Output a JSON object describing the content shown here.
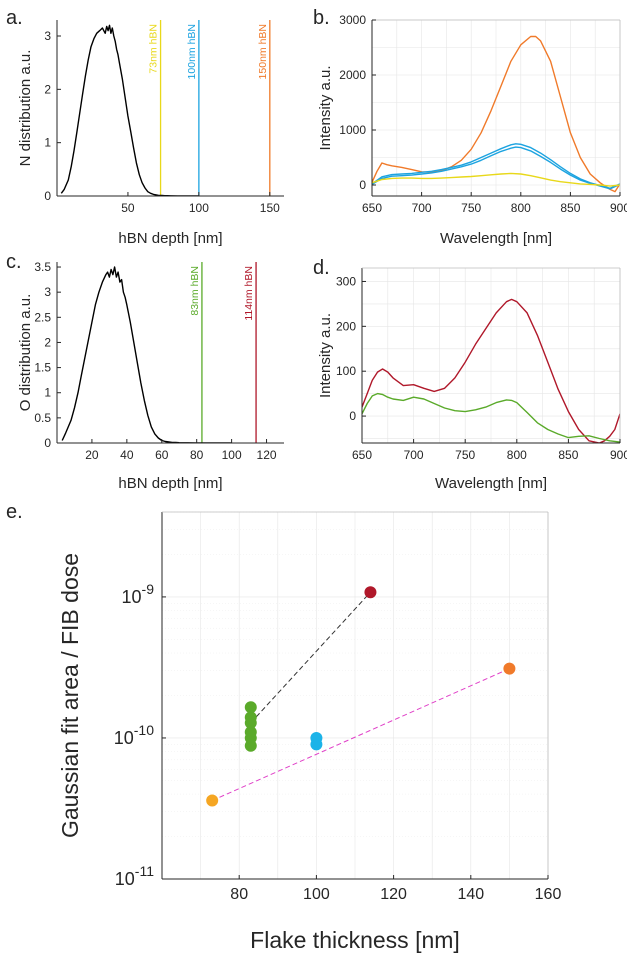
{
  "chart_data": [
    {
      "panel": "a",
      "panel_label": "a.",
      "type": "line",
      "title": "",
      "xlabel": "hBN depth [nm]",
      "ylabel": "N distribution a.u.",
      "xlim": [
        0,
        160
      ],
      "ylim": [
        0,
        3.3
      ],
      "xticks": [
        50,
        100,
        150
      ],
      "yticks": [
        0,
        1,
        2,
        3
      ],
      "grid": false,
      "series": [
        {
          "name": "N distribution",
          "color": "#000000",
          "x": [
            3,
            5,
            8,
            10,
            12,
            14,
            16,
            18,
            20,
            22,
            24,
            26,
            28,
            30,
            32,
            34,
            35,
            36,
            37,
            38,
            39,
            40,
            41,
            42,
            43,
            44,
            46,
            48,
            50,
            52,
            54,
            56,
            58,
            60,
            62,
            64,
            66,
            68,
            70,
            72,
            74,
            76,
            78,
            80,
            85,
            90,
            95,
            100
          ],
          "y": [
            0.05,
            0.12,
            0.3,
            0.55,
            0.85,
            1.2,
            1.55,
            1.9,
            2.25,
            2.55,
            2.8,
            2.95,
            3.05,
            3.1,
            3.15,
            3.05,
            3.18,
            3.1,
            3.2,
            3.05,
            3.15,
            3.0,
            2.9,
            2.75,
            2.65,
            2.5,
            2.2,
            1.85,
            1.5,
            1.2,
            0.9,
            0.62,
            0.4,
            0.25,
            0.15,
            0.08,
            0.05,
            0.03,
            0.02,
            0.01,
            0.01,
            0.005,
            0.005,
            0.003,
            0.002,
            0.001,
            0.001,
            0.001
          ]
        }
      ],
      "vlines": [
        {
          "x": 73,
          "label": "73nm hBN",
          "color": "#e8d81a"
        },
        {
          "x": 100,
          "label": "100nm hBN",
          "color": "#1ca3e0"
        },
        {
          "x": 150,
          "label": "150nm hBN",
          "color": "#f07a2a"
        }
      ]
    },
    {
      "panel": "b",
      "panel_label": "b.",
      "type": "line",
      "title": "",
      "xlabel": "Wavelength [nm]",
      "ylabel": "Intensity a.u.",
      "xlim": [
        650,
        900
      ],
      "ylim": [
        -200,
        3000
      ],
      "xticks": [
        650,
        700,
        750,
        800,
        850,
        900
      ],
      "yticks": [
        0,
        1000,
        2000,
        3000
      ],
      "grid": true,
      "series": [
        {
          "name": "150nm",
          "color": "#f07a2a",
          "x": [
            650,
            655,
            660,
            665,
            670,
            680,
            690,
            700,
            710,
            720,
            730,
            740,
            750,
            760,
            770,
            780,
            790,
            800,
            810,
            815,
            820,
            830,
            840,
            850,
            860,
            870,
            880,
            885,
            890,
            895,
            900
          ],
          "y": [
            50,
            250,
            400,
            370,
            350,
            320,
            280,
            240,
            230,
            260,
            330,
            450,
            650,
            950,
            1350,
            1800,
            2250,
            2550,
            2700,
            2700,
            2620,
            2250,
            1600,
            950,
            500,
            200,
            40,
            -20,
            -80,
            -120,
            20
          ]
        },
        {
          "name": "100nm (1)",
          "color": "#1ca3e0",
          "x": [
            650,
            660,
            670,
            680,
            690,
            700,
            710,
            720,
            730,
            740,
            750,
            760,
            770,
            780,
            790,
            795,
            800,
            810,
            820,
            830,
            840,
            850,
            860,
            870,
            880,
            890,
            900
          ],
          "y": [
            20,
            150,
            190,
            200,
            210,
            230,
            250,
            280,
            320,
            360,
            420,
            500,
            580,
            660,
            730,
            750,
            740,
            680,
            580,
            460,
            330,
            210,
            110,
            40,
            -10,
            -60,
            20
          ]
        },
        {
          "name": "100nm (2)",
          "color": "#1ca3e0",
          "x": [
            650,
            660,
            670,
            680,
            690,
            700,
            710,
            720,
            730,
            740,
            750,
            760,
            770,
            780,
            790,
            795,
            800,
            810,
            820,
            830,
            840,
            850,
            860,
            870,
            880,
            890,
            900
          ],
          "y": [
            10,
            120,
            160,
            170,
            180,
            200,
            220,
            250,
            290,
            330,
            380,
            450,
            530,
            610,
            670,
            690,
            680,
            620,
            520,
            410,
            290,
            180,
            90,
            30,
            -20,
            -70,
            10
          ]
        },
        {
          "name": "73nm",
          "color": "#e8d81a",
          "x": [
            650,
            660,
            670,
            680,
            690,
            700,
            710,
            720,
            730,
            740,
            750,
            760,
            770,
            780,
            790,
            800,
            810,
            820,
            830,
            840,
            850,
            860,
            870,
            880,
            890,
            900
          ],
          "y": [
            40,
            100,
            120,
            125,
            125,
            120,
            120,
            125,
            135,
            145,
            155,
            170,
            185,
            200,
            210,
            200,
            170,
            130,
            90,
            60,
            40,
            20,
            10,
            0,
            -20,
            0
          ]
        }
      ]
    },
    {
      "panel": "c",
      "panel_label": "c.",
      "type": "line",
      "title": "",
      "xlabel": "hBN depth [nm]",
      "ylabel": "O distribution a.u.",
      "xlim": [
        0,
        130
      ],
      "ylim": [
        0,
        3.6
      ],
      "xticks": [
        20,
        40,
        60,
        80,
        100,
        120
      ],
      "yticks": [
        0,
        0.5,
        1,
        1.5,
        2,
        2.5,
        3,
        3.5
      ],
      "grid": false,
      "series": [
        {
          "name": "O distribution",
          "color": "#000000",
          "x": [
            3,
            5,
            8,
            10,
            12,
            14,
            16,
            18,
            20,
            22,
            24,
            26,
            28,
            29,
            30,
            31,
            32,
            33,
            34,
            35,
            36,
            37,
            38,
            39,
            40,
            42,
            44,
            46,
            48,
            50,
            52,
            54,
            56,
            58,
            60,
            62,
            64,
            66,
            68,
            70,
            75,
            80,
            90,
            100
          ],
          "y": [
            0.05,
            0.2,
            0.45,
            0.7,
            1.0,
            1.35,
            1.7,
            2.05,
            2.4,
            2.75,
            3.0,
            3.2,
            3.35,
            3.4,
            3.3,
            3.45,
            3.35,
            3.5,
            3.3,
            3.4,
            3.2,
            3.25,
            3.0,
            2.9,
            2.75,
            2.4,
            2.0,
            1.6,
            1.2,
            0.85,
            0.55,
            0.32,
            0.18,
            0.1,
            0.05,
            0.03,
            0.02,
            0.01,
            0.01,
            0.005,
            0.003,
            0.002,
            0.001,
            0.001
          ]
        }
      ],
      "vlines": [
        {
          "x": 83,
          "label": "83nm hBN",
          "color": "#5aaa2a"
        },
        {
          "x": 114,
          "label": "114nm hBN",
          "color": "#b0182a"
        }
      ]
    },
    {
      "panel": "d",
      "panel_label": "d.",
      "type": "line",
      "title": "",
      "xlabel": "Wavelength [nm]",
      "ylabel": "Intensity a.u.",
      "xlim": [
        650,
        900
      ],
      "ylim": [
        -60,
        330
      ],
      "xticks": [
        650,
        700,
        750,
        800,
        850,
        900
      ],
      "yticks": [
        0,
        100,
        200,
        300
      ],
      "grid": true,
      "series": [
        {
          "name": "114nm",
          "color": "#b0182a",
          "x": [
            650,
            655,
            660,
            665,
            670,
            675,
            680,
            690,
            700,
            710,
            720,
            730,
            740,
            750,
            760,
            770,
            780,
            790,
            795,
            800,
            810,
            820,
            830,
            840,
            850,
            860,
            870,
            880,
            885,
            890,
            895,
            900
          ],
          "y": [
            20,
            50,
            80,
            98,
            105,
            98,
            85,
            68,
            70,
            62,
            55,
            62,
            85,
            120,
            160,
            195,
            230,
            255,
            260,
            255,
            230,
            180,
            120,
            60,
            10,
            -30,
            -55,
            -60,
            -55,
            -45,
            -30,
            5
          ]
        },
        {
          "name": "83nm",
          "color": "#5aaa2a",
          "x": [
            650,
            655,
            660,
            665,
            670,
            675,
            680,
            690,
            700,
            710,
            720,
            730,
            740,
            750,
            760,
            770,
            780,
            790,
            795,
            800,
            810,
            820,
            830,
            840,
            850,
            860,
            870,
            880,
            890,
            900
          ],
          "y": [
            5,
            28,
            45,
            50,
            48,
            42,
            38,
            35,
            42,
            38,
            28,
            18,
            12,
            10,
            14,
            20,
            30,
            36,
            35,
            30,
            8,
            -15,
            -30,
            -40,
            -48,
            -45,
            -44,
            -50,
            -55,
            -58
          ]
        }
      ]
    },
    {
      "panel": "e",
      "panel_label": "e.",
      "type": "scatter",
      "title": "",
      "xlabel": "Flake thickness [nm]",
      "ylabel": "Gaussian fit area / FIB dose",
      "xlim": [
        60,
        160
      ],
      "yscale": "log",
      "ylim": [
        1e-11,
        4e-09
      ],
      "xticks": [
        80,
        100,
        120,
        140,
        160
      ],
      "yticks": [
        1e-11,
        1e-10,
        1e-09
      ],
      "ytick_labels": [
        {
          "base": "10",
          "exp": "-11"
        },
        {
          "base": "10",
          "exp": "-10"
        },
        {
          "base": "10",
          "exp": "-9"
        }
      ],
      "grid": true,
      "series": [
        {
          "name": "73nm",
          "color": "#f5a623",
          "x": [
            73
          ],
          "y": [
            3.6e-11
          ]
        },
        {
          "name": "83nm",
          "color": "#5aaa2a",
          "x": [
            83,
            83,
            83,
            83,
            83,
            83
          ],
          "y": [
            1.65e-10,
            1.4e-10,
            1.28e-10,
            1.1e-10,
            1e-10,
            8.8e-11
          ]
        },
        {
          "name": "100nm",
          "color": "#1cb3e8",
          "x": [
            100,
            100
          ],
          "y": [
            1e-10,
            9e-11
          ]
        },
        {
          "name": "114nm",
          "color": "#b0182a",
          "x": [
            114
          ],
          "y": [
            1.08e-09
          ]
        },
        {
          "name": "150nm",
          "color": "#f07a2a",
          "x": [
            150
          ],
          "y": [
            3.1e-10
          ]
        }
      ],
      "fit_lines": [
        {
          "from": [
            73,
            3.6e-11
          ],
          "to": [
            150,
            3.1e-10
          ],
          "color": "#e040c8",
          "style": "dashed"
        },
        {
          "from": [
            83,
            1.28e-10
          ],
          "to": [
            114,
            1.08e-09
          ],
          "color": "#333333",
          "style": "dashed"
        }
      ]
    }
  ]
}
